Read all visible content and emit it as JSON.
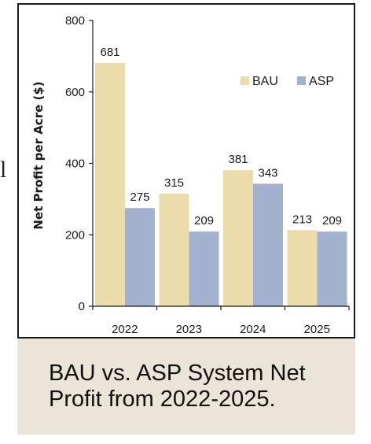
{
  "stray_text": "l",
  "caption": "BAU vs. ASP System Net Profit from 2022-2025.",
  "colors": {
    "bau": "#eddcab",
    "asp": "#a2b1ce",
    "axis": "#1a1a1a",
    "caption_bg": "#ebe4d8"
  },
  "chart_data": {
    "type": "bar",
    "title": "",
    "xlabel": "",
    "ylabel": "Net Profit per Acre ($)",
    "categories": [
      "2022",
      "2023",
      "2024",
      "2025"
    ],
    "series": [
      {
        "name": "BAU",
        "values": [
          681,
          315,
          381,
          213
        ]
      },
      {
        "name": "ASP",
        "values": [
          275,
          209,
          343,
          209
        ]
      }
    ],
    "ylim": [
      0,
      800
    ],
    "yticks": [
      0,
      200,
      400,
      600,
      800
    ],
    "grid": false,
    "legend": "top-right",
    "data_labels": true
  }
}
